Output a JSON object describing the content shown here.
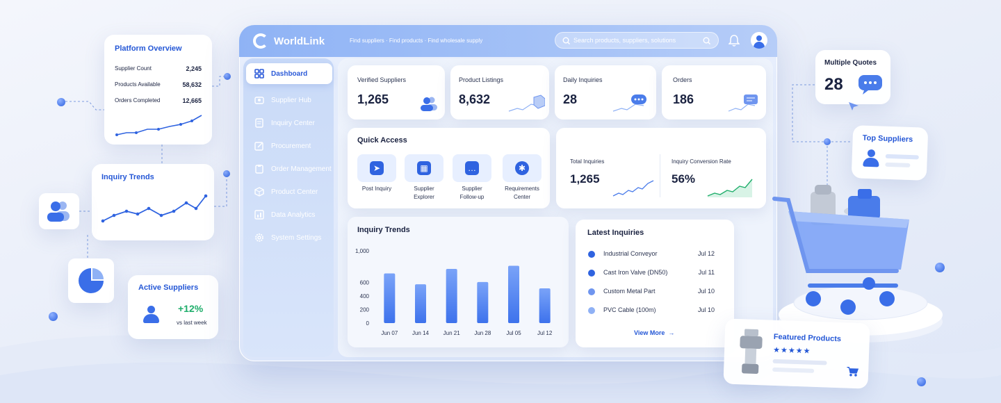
{
  "app": {
    "name": "WorldLink",
    "tagline": "Find suppliers · Find products · Find wholesale supply",
    "search_placeholder": "Search products, suppliers, solutions"
  },
  "sidebar": {
    "items": [
      {
        "label": "Dashboard",
        "icon": "grid-icon",
        "active": true
      },
      {
        "label": "Supplier Hub",
        "icon": "supplier-icon",
        "active": false
      },
      {
        "label": "Inquiry Center",
        "icon": "inquiry-icon",
        "active": false
      },
      {
        "label": "Procurement",
        "icon": "edit-icon",
        "active": false
      },
      {
        "label": "Order Management",
        "icon": "clipboard-icon",
        "active": false
      },
      {
        "label": "Product Center",
        "icon": "cube-icon",
        "active": false
      },
      {
        "label": "Data Analytics",
        "icon": "chart-icon",
        "active": false
      },
      {
        "label": "System Settings",
        "icon": "gear-icon",
        "active": false
      }
    ]
  },
  "stats": [
    {
      "label": "Verified Suppliers",
      "value": "1,265",
      "icon": "users-icon"
    },
    {
      "label": "Product Listings",
      "value": "8,632",
      "icon": "box-icon"
    },
    {
      "label": "Daily Inquiries",
      "value": "28",
      "icon": "chat-icon"
    },
    {
      "label": "Orders",
      "value": "186",
      "icon": "order-icon"
    }
  ],
  "quick_access": {
    "title": "Quick Access",
    "items": [
      {
        "label": "Post Inquiry",
        "icon": "send-icon"
      },
      {
        "label": "Supplier Explorer",
        "icon": "grid-icon"
      },
      {
        "label": "Supplier Follow-up",
        "icon": "chat-icon"
      },
      {
        "label": "Requirements Center",
        "icon": "gear-icon"
      }
    ]
  },
  "totals": {
    "total_inquiries_label": "Total Inquiries",
    "total_inquiries_value": "1,265",
    "conversion_label": "Inquiry Conversion Rate",
    "conversion_value": "56%"
  },
  "chart_data": {
    "type": "bar",
    "title": "Inquiry Trends",
    "categories": [
      "Jun 07",
      "Jun 14",
      "Jun 21",
      "Jun 28",
      "Jul 05",
      "Jul 12"
    ],
    "values": [
      550,
      430,
      600,
      455,
      635,
      385
    ],
    "yticks": [
      "1,000",
      "600",
      "400",
      "200",
      "0"
    ],
    "ylim": [
      0,
      1000
    ],
    "colors": {
      "bar": "#3d72ec"
    }
  },
  "latest_inquiries": {
    "title": "Latest Inquiries",
    "items": [
      {
        "name": "Industrial Conveyor",
        "date": "Jul 12",
        "color": "#2f63e0"
      },
      {
        "name": "Cast Iron Valve (DN50)",
        "date": "Jul 11",
        "color": "#2f63e0"
      },
      {
        "name": "Custom Metal Part",
        "date": "Jul 10",
        "color": "#6f95ef"
      },
      {
        "name": "PVC Cable (100m)",
        "date": "Jul 10",
        "color": "#8fb1f5"
      }
    ],
    "view_more": "View More"
  },
  "platform_overview": {
    "title": "Platform Overview",
    "rows": [
      {
        "label": "Supplier Count",
        "value": "2,245"
      },
      {
        "label": "Products Available",
        "value": "58,632"
      },
      {
        "label": "Orders Completed",
        "value": "12,665"
      }
    ]
  },
  "inquiry_trends_card": {
    "title": "Inquiry Trends"
  },
  "active_suppliers": {
    "title": "Active Suppliers",
    "change": "+12%",
    "note": "vs last week"
  },
  "multiple_quotes": {
    "title": "Multiple Quotes",
    "value": "28"
  },
  "top_suppliers": {
    "title": "Top Suppliers"
  },
  "featured_products": {
    "title": "Featured Products",
    "rating": 5
  },
  "colors": {
    "accent": "#2f63e0",
    "positive": "#1fae6b",
    "title_blue": "#2457d6"
  }
}
